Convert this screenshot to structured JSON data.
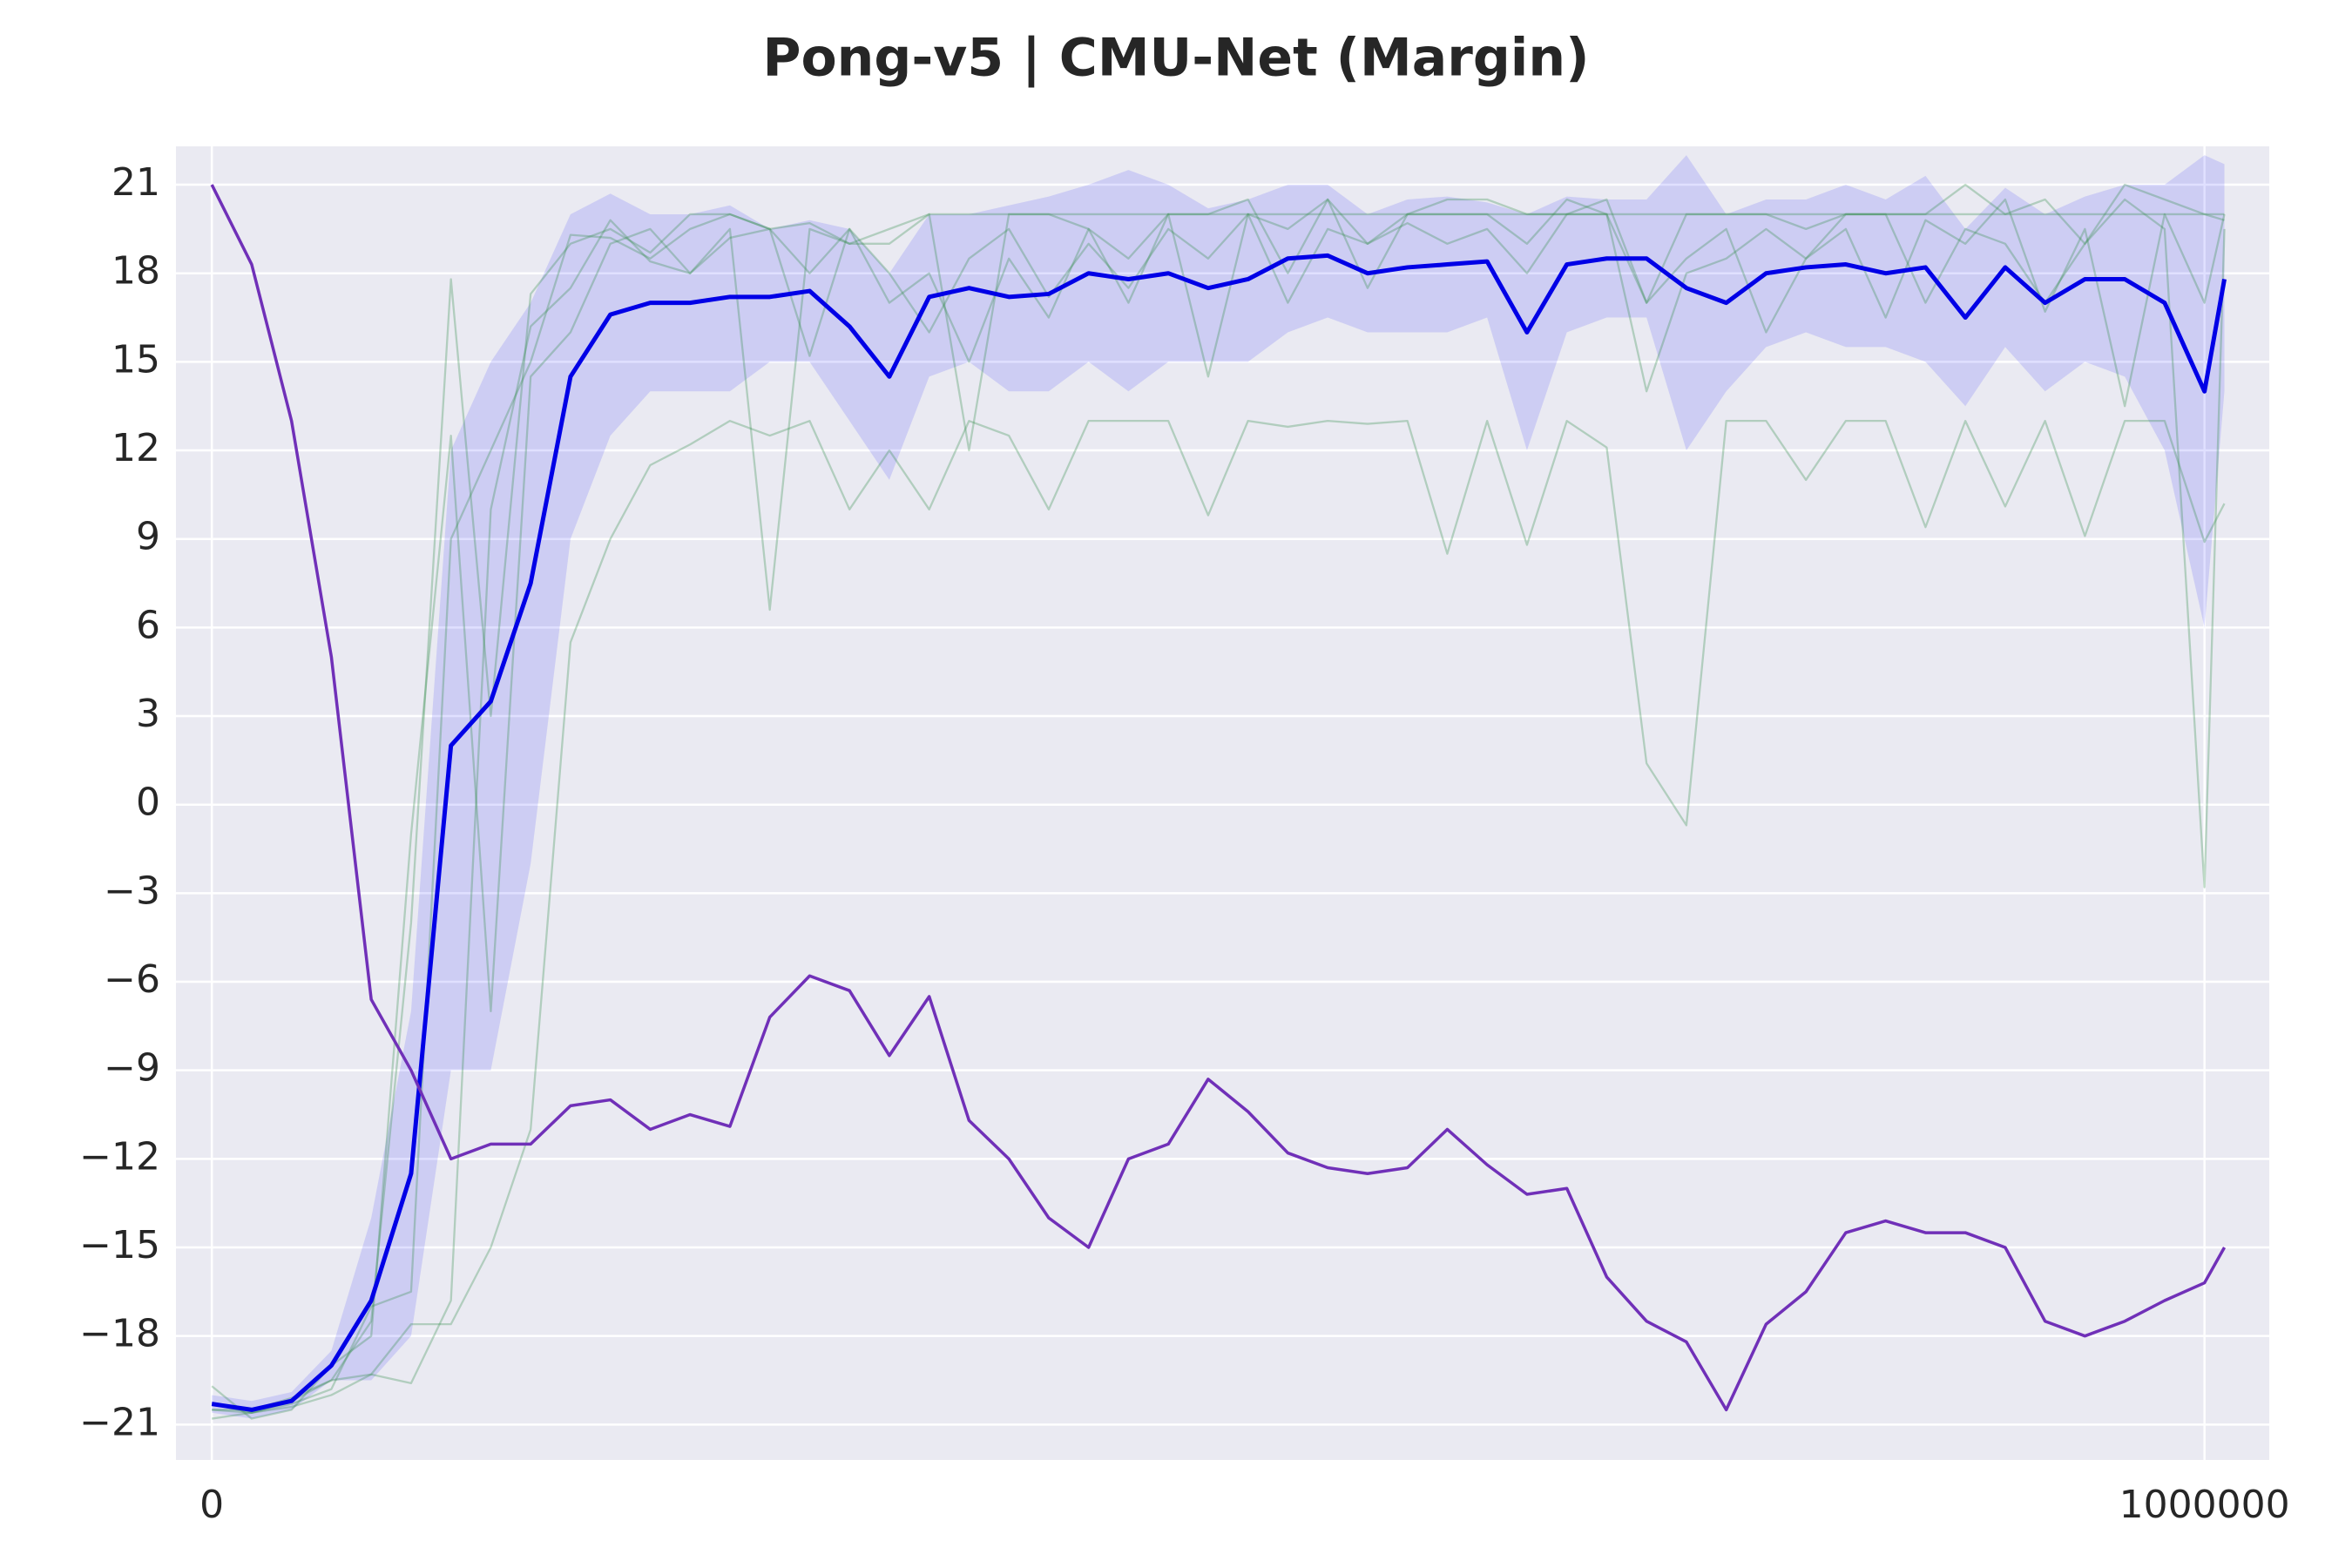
{
  "chart_data": {
    "type": "line",
    "title": "Pong-v5 | CMU-Net (Margin)",
    "x": [
      0,
      20000,
      40000,
      60000,
      80000,
      100000,
      120000,
      140000,
      160000,
      180000,
      200000,
      220000,
      240000,
      260000,
      280000,
      300000,
      320000,
      340000,
      360000,
      380000,
      400000,
      420000,
      440000,
      460000,
      480000,
      500000,
      520000,
      540000,
      560000,
      580000,
      600000,
      620000,
      640000,
      660000,
      680000,
      700000,
      720000,
      740000,
      760000,
      780000,
      800000,
      820000,
      840000,
      860000,
      880000,
      900000,
      920000,
      940000,
      960000,
      980000,
      1000000,
      1010000
    ],
    "xlim": [
      -18000,
      1032500
    ],
    "xticks": [
      0,
      1000000
    ],
    "ylim": [
      -22.2,
      22.3
    ],
    "yticks": [
      {
        "value": -21,
        "label": "−21"
      },
      {
        "value": -18,
        "label": "−18"
      },
      {
        "value": -15,
        "label": "−15"
      },
      {
        "value": -12,
        "label": "−12"
      },
      {
        "value": -9,
        "label": "−9"
      },
      {
        "value": -6,
        "label": "−6"
      },
      {
        "value": -3,
        "label": "−3"
      },
      0,
      3,
      6,
      9,
      12,
      15,
      18,
      21
    ],
    "grid": true,
    "background": "#eaeaf2",
    "band": {
      "color": "#0000ff",
      "alpha": 0.12,
      "lower": [
        -20.6,
        -20.8,
        -20.5,
        -19.5,
        -19.5,
        -18,
        -9,
        -9,
        -2,
        9,
        12.5,
        14,
        14,
        14,
        15,
        15,
        13,
        11,
        14.5,
        15,
        14,
        14,
        15,
        14,
        15,
        15,
        15,
        16,
        16.5,
        16,
        16,
        16,
        16.5,
        12,
        16,
        16.5,
        16.5,
        12,
        14,
        15.5,
        16,
        15.5,
        15.5,
        15,
        13.5,
        15.5,
        14,
        15,
        14.5,
        12,
        6,
        14
      ],
      "upper": [
        -20,
        -20.2,
        -19.9,
        -18.5,
        -14,
        -7,
        12,
        15,
        17,
        20,
        20.7,
        20,
        20,
        20.3,
        19.5,
        19.8,
        19.5,
        18,
        20,
        20,
        20.3,
        20.6,
        21,
        21.5,
        21,
        20.2,
        20.5,
        21,
        21,
        20,
        20.5,
        20.6,
        20.4,
        20,
        20.6,
        20.5,
        20.5,
        22,
        20,
        20.5,
        20.5,
        21,
        20.5,
        21.3,
        19.5,
        20.9,
        20,
        20.6,
        21,
        21,
        22,
        21.7
      ]
    },
    "series": [
      {
        "color": "#2e8b45",
        "alpha": 0.3,
        "width": 2.3,
        "values": [
          -20.5,
          -20.6,
          -20.3,
          -19.8,
          -17,
          -16.5,
          9,
          12,
          15,
          19.3,
          19.2,
          18.5,
          19.5,
          20,
          19.5,
          19.7,
          19,
          19,
          20,
          20,
          20,
          20,
          20,
          20,
          20,
          20,
          20,
          20,
          20,
          20,
          20,
          20,
          20,
          20,
          20,
          20,
          20,
          20,
          20,
          20,
          20,
          20,
          20,
          20,
          20,
          20,
          20,
          20,
          20,
          20,
          20,
          20
        ]
      },
      {
        "color": "#2e8b45",
        "alpha": 0.3,
        "width": 2.3,
        "values": [
          -20.8,
          -20.6,
          -20.4,
          -20,
          -19.3,
          -17.6,
          -17.6,
          -15,
          -11,
          5.5,
          9,
          11.5,
          12.2,
          13,
          12.5,
          13,
          10,
          12,
          10,
          13,
          12.5,
          10,
          13,
          13,
          13,
          9.8,
          13,
          12.8,
          13,
          12.9,
          13,
          8.5,
          13,
          8.8,
          13,
          12.1,
          1.4,
          -0.7,
          13,
          13,
          11,
          13,
          13,
          9.4,
          13,
          10.1,
          13,
          9.1,
          13,
          13,
          8.9,
          10.2
        ]
      },
      {
        "color": "#2e8b45",
        "alpha": 0.3,
        "width": 2.3,
        "values": [
          -19.7,
          -20.8,
          -20.5,
          -19,
          -18,
          -1,
          12.5,
          -7,
          14.5,
          16,
          19,
          19.5,
          18,
          19.5,
          6.6,
          19.5,
          19,
          19.5,
          20,
          12,
          20,
          20,
          19.5,
          17,
          20,
          14.5,
          20,
          19.5,
          20.5,
          19,
          20,
          20.5,
          20.5,
          20,
          20,
          20,
          17,
          20,
          20,
          20,
          19.5,
          20,
          20,
          20,
          21,
          20,
          20.5,
          19,
          21,
          20.5,
          20,
          19.8
        ]
      },
      {
        "color": "#2e8b45",
        "alpha": 0.3,
        "width": 2.3,
        "values": [
          -20.5,
          -20.5,
          -20.1,
          -19.5,
          -17.5,
          -4,
          17.8,
          3,
          17.3,
          19,
          19.5,
          18.7,
          20,
          20,
          19.5,
          18,
          19.5,
          17,
          18,
          15,
          18.5,
          16.5,
          19.5,
          18.5,
          20,
          20,
          20.5,
          18,
          20.5,
          17.5,
          20,
          20,
          20,
          19,
          20.5,
          20,
          14,
          18,
          18.5,
          19.5,
          18.5,
          20,
          20,
          17,
          19.5,
          19,
          17,
          19,
          20.5,
          19.5,
          -2.8,
          19.5
        ]
      },
      {
        "color": "#2e8b45",
        "alpha": 0.3,
        "width": 2.3,
        "values": [
          -20.3,
          -20.6,
          -20.2,
          -19.5,
          -19.3,
          -19.6,
          -16.8,
          10,
          16.2,
          17.5,
          19.8,
          18.4,
          18,
          19.2,
          19.5,
          15.2,
          19.5,
          18,
          16,
          18.5,
          19.5,
          17.2,
          19,
          17.5,
          19.5,
          18.5,
          20,
          17,
          19.5,
          19,
          19.7,
          19,
          19.5,
          18,
          20,
          20.5,
          17,
          18.5,
          19.5,
          16,
          18.5,
          19.5,
          16.5,
          19.8,
          19,
          20.5,
          16.7,
          19.5,
          13.5,
          20,
          17,
          20
        ]
      },
      {
        "color": "#0000e6",
        "alpha": 1,
        "width": 5,
        "values": [
          -20.3,
          -20.5,
          -20.2,
          -19,
          -16.8,
          -12.5,
          2,
          3.5,
          7.5,
          14.5,
          16.6,
          17,
          17,
          17.2,
          17.2,
          17.4,
          16.2,
          14.5,
          17.2,
          17.5,
          17.2,
          17.3,
          18,
          17.8,
          18,
          17.5,
          17.8,
          18.5,
          18.6,
          18,
          18.2,
          18.3,
          18.4,
          16,
          18.3,
          18.5,
          18.5,
          17.5,
          17,
          18,
          18.2,
          18.3,
          18,
          18.2,
          16.5,
          18.2,
          17,
          17.8,
          17.8,
          17,
          14,
          17.8
        ]
      },
      {
        "color": "#7030b8",
        "alpha": 1,
        "width": 3.5,
        "values": [
          21,
          18.3,
          13,
          5,
          -6.6,
          -9,
          -12,
          -11.5,
          -11.5,
          -10.2,
          -10,
          -11,
          -10.5,
          -10.9,
          -7.2,
          -5.8,
          -6.3,
          -8.5,
          -6.5,
          -10.7,
          -12,
          -14,
          -15,
          -12,
          -11.5,
          -9.3,
          -10.4,
          -11.8,
          -12.3,
          -12.5,
          -12.3,
          -11,
          -12.2,
          -13.2,
          -13,
          -16,
          -17.5,
          -18.2,
          -20.5,
          -17.6,
          -16.5,
          -14.5,
          -14.1,
          -14.5,
          -14.5,
          -15,
          -17.5,
          -18,
          -17.5,
          -16.8,
          -16.2,
          -15
        ]
      }
    ]
  }
}
